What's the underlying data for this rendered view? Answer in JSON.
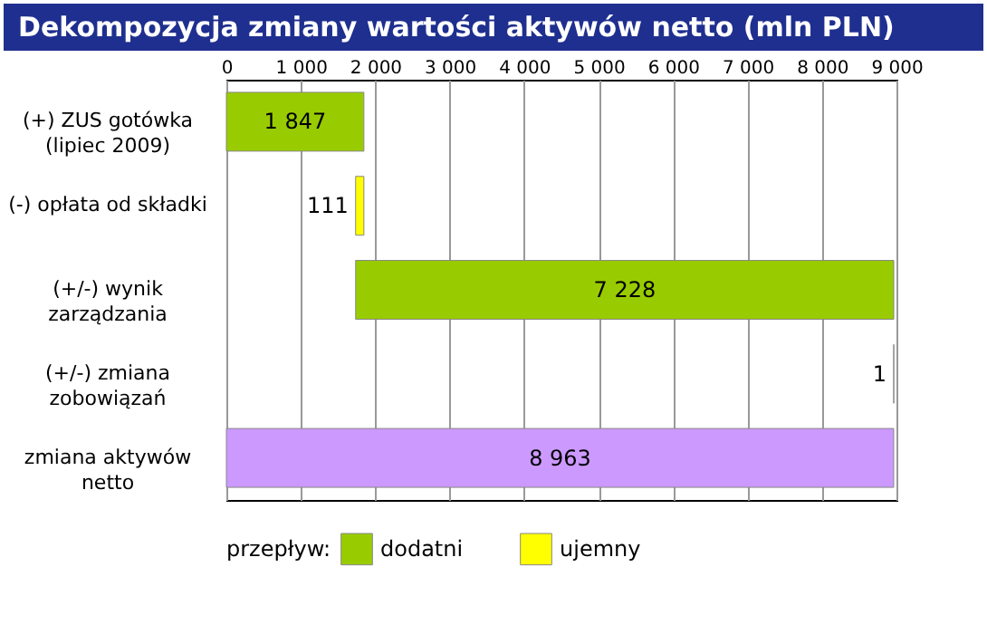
{
  "chart_data": {
    "type": "bar",
    "orientation": "horizontal",
    "title": "Dekompozycja zmiany wartości aktywów netto (mln PLN)",
    "categories": [
      "(+) ZUS gotówka\n(lipiec 2009)",
      "(-) opłata od składki",
      "(+/-) wynik\nzarządzania",
      "(+/-) zmiana\nzobowiązań",
      "zmiana aktywów\nnetto"
    ],
    "series": [
      {
        "name": "dodatni",
        "color": "#99cc00",
        "base": [
          0,
          null,
          1736,
          8963,
          null
        ],
        "values": [
          1847,
          null,
          7228,
          1,
          null
        ],
        "value_labels": [
          "1 847",
          null,
          "7 228",
          "1",
          null
        ]
      },
      {
        "name": "ujemny",
        "color": "#ffff00",
        "base": [
          null,
          1736,
          null,
          null,
          null
        ],
        "values": [
          null,
          111,
          null,
          null,
          null
        ],
        "value_labels": [
          null,
          "111",
          null,
          null,
          null
        ]
      },
      {
        "color": "#cc99ff",
        "base": [
          null,
          null,
          null,
          null,
          0
        ],
        "values": [
          null,
          null,
          null,
          null,
          8963
        ],
        "value_labels": [
          null,
          null,
          null,
          null,
          "8 963"
        ]
      }
    ],
    "xlim": [
      0,
      9000
    ],
    "xticks": [
      0,
      {
        "value": 1000,
        "label": "1 000"
      },
      {
        "value": 2000,
        "label": "2 000"
      },
      {
        "value": 3000,
        "label": "3 000"
      },
      {
        "value": 4000,
        "label": "4 000"
      },
      {
        "value": 5000,
        "label": "5 000"
      },
      {
        "value": 6000,
        "label": "6 000"
      },
      {
        "value": 7000,
        "label": "7 000"
      },
      {
        "value": 8000,
        "label": "8 000"
      },
      {
        "value": 9000,
        "label": "9 000"
      }
    ],
    "grid": "x",
    "legend": "bottom",
    "legend_title": "przepływ:"
  }
}
